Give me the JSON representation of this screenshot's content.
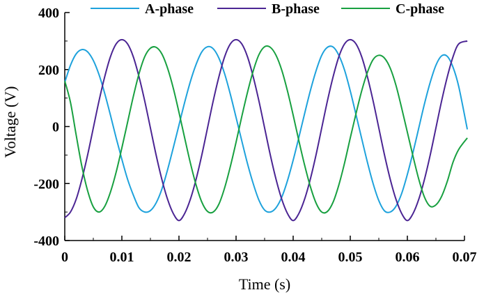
{
  "chart_data": {
    "type": "line",
    "xlabel": "Time (s)",
    "ylabel": "Voltage (V)",
    "xlim": [
      0,
      0.07
    ],
    "ylim": [
      -400,
      400
    ],
    "x_ticks": [
      0,
      0.01,
      0.02,
      0.03,
      0.04,
      0.05,
      0.06,
      0.07
    ],
    "x_tick_labels": [
      "0",
      "0.01",
      "0.02",
      "0.03",
      "0.04",
      "0.05",
      "0.06",
      "0.07"
    ],
    "y_ticks": [
      -400,
      -200,
      0,
      200,
      400
    ],
    "y_tick_labels": [
      "-400",
      "-200",
      "0",
      "200",
      "400"
    ],
    "grid": false,
    "legend_position": "top",
    "series": [
      {
        "name": "A-phase",
        "color": "#1ea2dc",
        "x": [
          0,
          0.001,
          0.002,
          0.003,
          0.004,
          0.005,
          0.006,
          0.007,
          0.008,
          0.009,
          0.01,
          0.011,
          0.012,
          0.013,
          0.014,
          0.015,
          0.016,
          0.017,
          0.018,
          0.019,
          0.02,
          0.021,
          0.022,
          0.023,
          0.024,
          0.025,
          0.026,
          0.027,
          0.028,
          0.029,
          0.03,
          0.031,
          0.032,
          0.033,
          0.034,
          0.035,
          0.036,
          0.037,
          0.038,
          0.039,
          0.04,
          0.041,
          0.042,
          0.043,
          0.044,
          0.045,
          0.046,
          0.047,
          0.048,
          0.049,
          0.05,
          0.051,
          0.052,
          0.053,
          0.054,
          0.055,
          0.056,
          0.057,
          0.058,
          0.059,
          0.06,
          0.061,
          0.062,
          0.063,
          0.064,
          0.065,
          0.066,
          0.067,
          0.068,
          0.069,
          0.0705
        ],
        "y": [
          155,
          215,
          255,
          270,
          262,
          232,
          182,
          116,
          40,
          -40,
          -115,
          -185,
          -240,
          -285,
          -300,
          -295,
          -268,
          -220,
          -152,
          -75,
          5,
          85,
          158,
          218,
          262,
          280,
          273,
          240,
          185,
          113,
          32,
          -50,
          -130,
          -200,
          -258,
          -293,
          -300,
          -285,
          -248,
          -190,
          -118,
          -38,
          45,
          125,
          195,
          250,
          278,
          279,
          250,
          198,
          125,
          42,
          -42,
          -125,
          -200,
          -260,
          -296,
          -300,
          -280,
          -235,
          -168,
          -90,
          -5,
          80,
          155,
          215,
          248,
          246,
          208,
          140,
          -10
        ]
      },
      {
        "name": "B-phase",
        "color": "#4b2593",
        "x": [
          0,
          0.001,
          0.002,
          0.003,
          0.004,
          0.005,
          0.006,
          0.007,
          0.008,
          0.009,
          0.01,
          0.011,
          0.012,
          0.013,
          0.014,
          0.015,
          0.016,
          0.017,
          0.018,
          0.019,
          0.02,
          0.021,
          0.022,
          0.023,
          0.024,
          0.025,
          0.026,
          0.027,
          0.028,
          0.029,
          0.03,
          0.031,
          0.032,
          0.033,
          0.034,
          0.035,
          0.036,
          0.037,
          0.038,
          0.039,
          0.04,
          0.041,
          0.042,
          0.043,
          0.044,
          0.045,
          0.046,
          0.047,
          0.048,
          0.049,
          0.05,
          0.051,
          0.052,
          0.053,
          0.054,
          0.055,
          0.056,
          0.057,
          0.058,
          0.059,
          0.06,
          0.061,
          0.062,
          0.063,
          0.064,
          0.065,
          0.066,
          0.067,
          0.068,
          0.069,
          0.0705
        ],
        "y": [
          -320,
          -300,
          -255,
          -185,
          -100,
          -5,
          90,
          175,
          245,
          290,
          305,
          290,
          245,
          175,
          90,
          -5,
          -100,
          -185,
          -255,
          -305,
          -330,
          -305,
          -255,
          -185,
          -100,
          -5,
          90,
          175,
          245,
          290,
          305,
          290,
          245,
          175,
          90,
          -5,
          -100,
          -185,
          -255,
          -305,
          -330,
          -305,
          -255,
          -185,
          -100,
          -5,
          90,
          175,
          245,
          290,
          305,
          290,
          245,
          175,
          90,
          -5,
          -100,
          -185,
          -255,
          -305,
          -330,
          -305,
          -255,
          -185,
          -100,
          -5,
          90,
          175,
          245,
          290,
          300
        ]
      },
      {
        "name": "C-phase",
        "color": "#18a040",
        "x": [
          0,
          0.001,
          0.002,
          0.003,
          0.004,
          0.005,
          0.006,
          0.007,
          0.008,
          0.009,
          0.01,
          0.011,
          0.012,
          0.013,
          0.014,
          0.015,
          0.016,
          0.017,
          0.018,
          0.019,
          0.02,
          0.021,
          0.022,
          0.023,
          0.024,
          0.025,
          0.026,
          0.027,
          0.028,
          0.029,
          0.03,
          0.031,
          0.032,
          0.033,
          0.034,
          0.035,
          0.036,
          0.037,
          0.038,
          0.039,
          0.04,
          0.041,
          0.042,
          0.043,
          0.044,
          0.045,
          0.046,
          0.047,
          0.048,
          0.049,
          0.05,
          0.051,
          0.052,
          0.053,
          0.054,
          0.055,
          0.056,
          0.057,
          0.058,
          0.059,
          0.06,
          0.061,
          0.062,
          0.063,
          0.064,
          0.065,
          0.066,
          0.067,
          0.068,
          0.069,
          0.0705
        ],
        "y": [
          160,
          85,
          -30,
          -140,
          -225,
          -282,
          -300,
          -280,
          -230,
          -160,
          -75,
          15,
          105,
          185,
          245,
          275,
          278,
          255,
          205,
          135,
          50,
          -40,
          -128,
          -205,
          -265,
          -298,
          -300,
          -272,
          -215,
          -140,
          -55,
          35,
          120,
          195,
          252,
          280,
          278,
          250,
          198,
          125,
          40,
          -50,
          -135,
          -210,
          -268,
          -300,
          -298,
          -265,
          -205,
          -128,
          -40,
          45,
          125,
          190,
          235,
          250,
          240,
          205,
          145,
          65,
          -20,
          -105,
          -185,
          -248,
          -280,
          -275,
          -245,
          -192,
          -125,
          -80,
          -40
        ]
      }
    ]
  }
}
